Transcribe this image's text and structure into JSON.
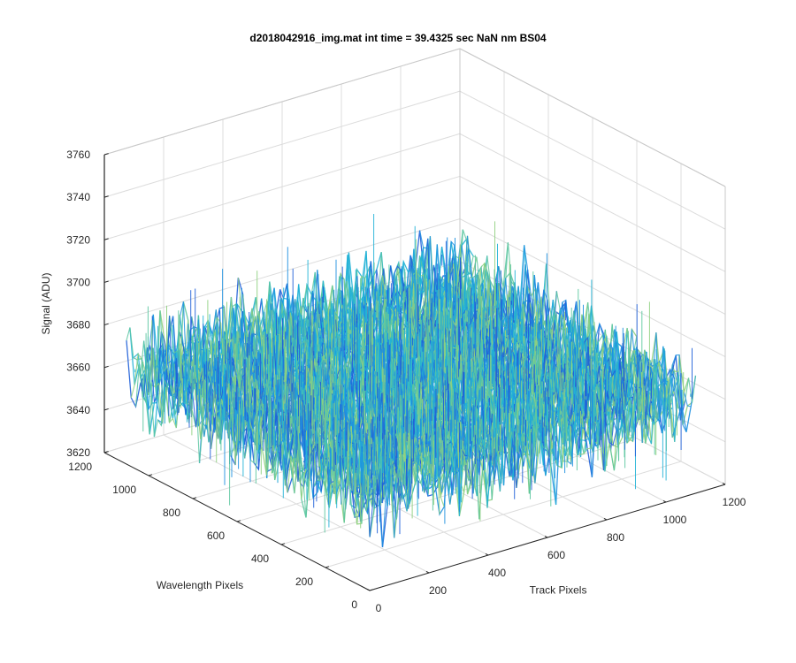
{
  "chart_data": {
    "type": "surface",
    "title": "d2018042916_img.mat int time = 39.4325 sec   NaN nm BS04",
    "xlabel": "Track Pixels",
    "ylabel": "Wavelength Pixels",
    "zlabel": "Signal (ADU)",
    "xlim": [
      0,
      1200
    ],
    "ylim": [
      0,
      1200
    ],
    "zlim": [
      3620,
      3760
    ],
    "xticks": [
      0,
      200,
      400,
      600,
      800,
      1000,
      1200
    ],
    "yticks": [
      0,
      200,
      400,
      600,
      800,
      1000,
      1200
    ],
    "zticks": [
      3620,
      3640,
      3660,
      3680,
      3700,
      3720,
      3740,
      3760
    ],
    "data_extent": {
      "x": [
        0,
        1100
      ],
      "y": [
        0,
        1100
      ]
    },
    "mean_signal": 3665,
    "noise_range": [
      3630,
      3725
    ],
    "grid": true,
    "colormap": [
      "#1f5fd8",
      "#1e90e0",
      "#22b2d6",
      "#5cc6a0",
      "#8fd080"
    ]
  }
}
